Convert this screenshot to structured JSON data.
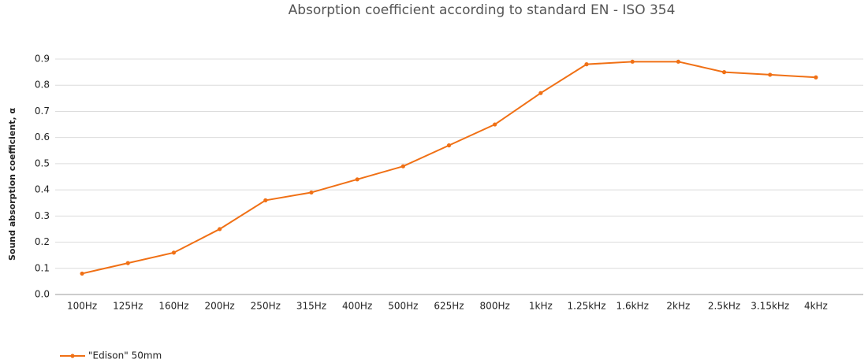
{
  "chart_data": {
    "type": "line",
    "title": "Absorption coefficient according to standard EN - ISO 354",
    "y_label": "Sound absorption coefficient, α",
    "categories": [
      "100Hz",
      "125Hz",
      "160Hz",
      "200Hz",
      "250Hz",
      "315Hz",
      "400Hz",
      "500Hz",
      "625Hz",
      "800Hz",
      "1kHz",
      "1.25kHz",
      "1.6kHz",
      "2kHz",
      "2.5kHz",
      "3.15kHz",
      "4kHz"
    ],
    "series": [
      {
        "name": "\"Edison\" 50mm",
        "color": "#f07015",
        "values": [
          0.08,
          0.12,
          0.16,
          0.25,
          0.36,
          0.39,
          0.44,
          0.49,
          0.57,
          0.65,
          0.77,
          0.88,
          0.89,
          0.89,
          0.85,
          0.84,
          0.83
        ]
      }
    ],
    "ylim": [
      0,
      0.9
    ],
    "yticks": [
      {
        "value": 0,
        "label": "0.0"
      },
      0.1,
      0.2,
      0.3,
      0.4,
      0.5,
      0.6,
      0.7,
      0.8,
      0.9
    ],
    "grid": true,
    "legend": "bottom-left"
  }
}
